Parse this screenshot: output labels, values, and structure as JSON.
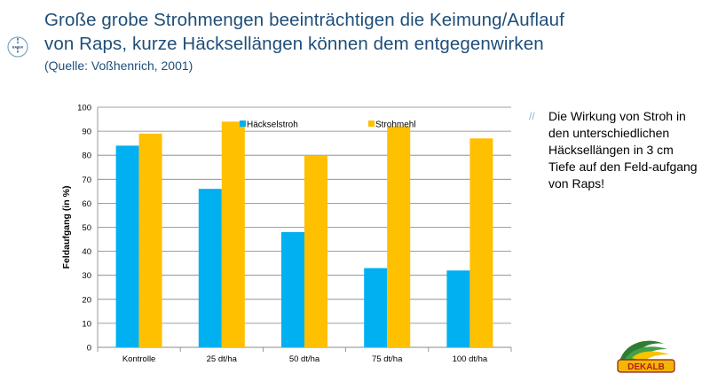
{
  "logo": {
    "text": "BAYER",
    "icon": "bayer-cross-icon"
  },
  "title": {
    "line1": "Große grobe Strohmengen  beeinträchtigen die Keimung/Auflauf",
    "line2": "von Raps, kurze Häcksellängen können dem entgegenwirken"
  },
  "source": "(Quelle:  Voßhenrich, 2001)",
  "side_note": {
    "bullet": "//",
    "text": "Die Wirkung von Stroh in den unterschiedlichen Häcksellängen in 3 cm Tiefe auf den Feld-aufgang von Raps!"
  },
  "brand_logo": {
    "text": "DEKALB",
    "icon": "dekalb-logo-icon"
  },
  "colors": {
    "haeckselstroh": "#00b0f0",
    "strohmehl": "#ffc000",
    "title": "#1f4e79"
  },
  "chart_data": {
    "type": "bar",
    "categories": [
      "Kontrolle",
      "25 dt/ha",
      "50 dt/ha",
      "75 dt/ha",
      "100 dt/ha"
    ],
    "series": [
      {
        "name": "Häckselstroh",
        "values": [
          84,
          66,
          48,
          33,
          32
        ]
      },
      {
        "name": "Strohmehl",
        "values": [
          89,
          94,
          80,
          92,
          87
        ]
      }
    ],
    "ylabel": "Feldaufgang (in %)",
    "ylim": [
      0,
      100
    ],
    "yticks": [
      0,
      10,
      20,
      30,
      40,
      50,
      60,
      70,
      80,
      90,
      100
    ],
    "grid": true,
    "legend_position": "top"
  }
}
